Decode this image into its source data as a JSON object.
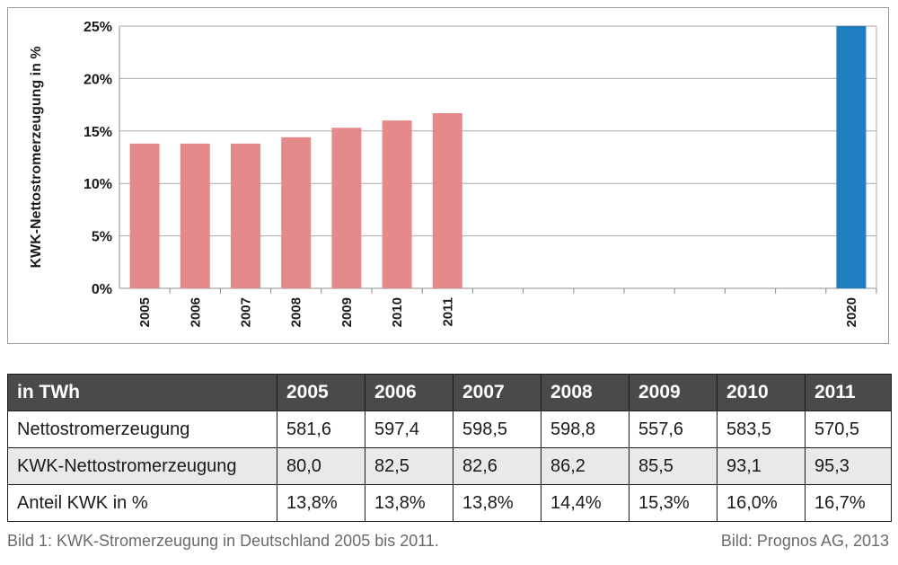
{
  "chart_data": {
    "type": "bar",
    "categories": [
      "2005",
      "2006",
      "2007",
      "2008",
      "2009",
      "2010",
      "2011",
      "",
      "",
      "",
      "",
      "",
      "",
      "",
      "2020"
    ],
    "values": [
      13.8,
      13.8,
      13.8,
      14.4,
      15.3,
      16.0,
      16.7,
      null,
      null,
      null,
      null,
      null,
      null,
      null,
      25
    ],
    "bar_colors": [
      "#e58a8a",
      "#e58a8a",
      "#e58a8a",
      "#e58a8a",
      "#e58a8a",
      "#e58a8a",
      "#e58a8a",
      null,
      null,
      null,
      null,
      null,
      null,
      null,
      "#1f7fc0"
    ],
    "ylabel": "KWK-Nettostromerzeugung in %",
    "yticks": [
      "0%",
      "5%",
      "10%",
      "15%",
      "20%",
      "25%"
    ],
    "ylim": [
      0,
      25
    ],
    "grid": true
  },
  "table": {
    "headers": [
      "in TWh",
      "2005",
      "2006",
      "2007",
      "2008",
      "2009",
      "2010",
      "2011"
    ],
    "rows": [
      [
        "Nettostromerzeugung",
        "581,6",
        "597,4",
        "598,5",
        "598,8",
        "557,6",
        "583,5",
        "570,5"
      ],
      [
        "KWK-Nettostromerzeugung",
        "80,0",
        "82,5",
        "82,6",
        "86,2",
        "85,5",
        "93,1",
        "95,3"
      ],
      [
        "Anteil KWK in %",
        "13,8%",
        "13,8%",
        "13,8%",
        "14,4%",
        "15,3%",
        "16,0%",
        "16,7%"
      ]
    ]
  },
  "caption": {
    "left": "Bild 1: KWK-Stromerzeugung in Deutschland 2005 bis 2011.",
    "right": "Bild: Prognos AG, 2013"
  }
}
